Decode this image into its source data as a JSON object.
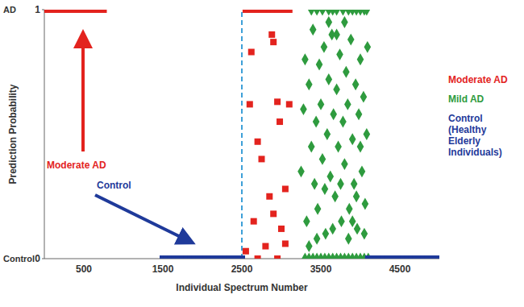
{
  "chart_data": {
    "type": "scatter",
    "x_label": "Individual Spectrum Number",
    "y_label": "Prediction Probability",
    "xlim": [
      0,
      5000
    ],
    "xticks": [
      500,
      1500,
      2500,
      3500,
      4500
    ],
    "ylim": [
      0,
      1
    ],
    "yticks": [
      0,
      1
    ],
    "grid": false,
    "legend": "right",
    "y_class_labels": [
      {
        "value": 1,
        "label": "AD"
      },
      {
        "value": 0,
        "label": "Control"
      }
    ],
    "annotations": [
      {
        "text": "Moderate AD",
        "color": "#e3231e"
      },
      {
        "text": "Control",
        "color": "#1f3a9a"
      }
    ],
    "reference_lines": [
      2500
    ],
    "series": [
      {
        "name": "Moderate AD",
        "color": "#e3231e",
        "marker": "square",
        "x": [
          0,
          50,
          100,
          150,
          200,
          250,
          300,
          350,
          400,
          450,
          500,
          550,
          600,
          650,
          700,
          750,
          2550,
          2600,
          2650,
          2700,
          2750,
          2800,
          2850,
          2900,
          2950,
          3000,
          3050,
          3100,
          2620,
          2600,
          2700,
          2880,
          2900,
          2950,
          2980,
          2750,
          2850,
          3000,
          3050,
          2800,
          2900,
          3100,
          2650,
          2550,
          2700,
          2950,
          3050
        ],
        "values": [
          1,
          1,
          1,
          1,
          1,
          1,
          1,
          1,
          1,
          1,
          1,
          1,
          1,
          1,
          1,
          1,
          1,
          1,
          1,
          1,
          1,
          1,
          1,
          1,
          1,
          1,
          1,
          1,
          0.83,
          0.62,
          0.47,
          0.9,
          0.87,
          0.63,
          0.55,
          0.4,
          0.25,
          0.12,
          0.06,
          0.05,
          0.18,
          0.62,
          0.15,
          0.03,
          0,
          0,
          0.28
        ]
      },
      {
        "name": "Mild AD",
        "color": "#2e9b3e",
        "marker": "diamond",
        "x": [
          3380,
          3450,
          3520,
          3600,
          3650,
          3700,
          3780,
          3850,
          3900,
          3950,
          4000,
          4050,
          4080,
          3300,
          3350,
          3400,
          3450,
          3500,
          3550,
          3600,
          3650,
          3700,
          3750,
          3800,
          3850,
          3900,
          3950,
          4000,
          4050,
          4100,
          3250,
          3280,
          3300,
          3320,
          3350,
          3380,
          3400,
          3420,
          3440,
          3460,
          3480,
          3500,
          3520,
          3540,
          3560,
          3580,
          3600,
          3620,
          3640,
          3660,
          3680,
          3700,
          3720,
          3740,
          3760,
          3780,
          3800,
          3820,
          3840,
          3860,
          3880,
          3900,
          3920,
          3940,
          3960,
          3980,
          4000,
          4020,
          4040,
          4060,
          4080,
          4090,
          3750,
          3850,
          3950,
          3650,
          3550,
          3450,
          3350,
          4050,
          3900,
          3700,
          3600,
          4000,
          3800
        ],
        "values": [
          1,
          1,
          1,
          1,
          1,
          1,
          1,
          1,
          1,
          1,
          1,
          1,
          1,
          0,
          0,
          0,
          0,
          0,
          0,
          0,
          0,
          0,
          0,
          0,
          0,
          0,
          0,
          0,
          0,
          0,
          0.35,
          0.6,
          0.8,
          0.15,
          0.7,
          0.45,
          0.92,
          0.3,
          0.55,
          0.2,
          0.78,
          0.62,
          0.4,
          0.85,
          0.1,
          0.5,
          0.72,
          0.33,
          0.9,
          0.58,
          0.25,
          0.68,
          0.45,
          0.82,
          0.15,
          0.55,
          0.38,
          0.75,
          0.62,
          0.2,
          0.88,
          0.48,
          0.3,
          0.7,
          0.12,
          0.58,
          0.8,
          0.35,
          0.65,
          0.22,
          0.5,
          0.85,
          0.3,
          0.08,
          0.25,
          0.12,
          0.28,
          0.08,
          0.05,
          0.1,
          0.15,
          0.9,
          0.95,
          0.45,
          0.95
        ]
      },
      {
        "name": "Control (Healthy Elderly Individuals)",
        "color": "#1f3a9a",
        "marker": "square",
        "x": [
          1500,
          1550,
          1600,
          1650,
          1700,
          1750,
          1800,
          1850,
          1900,
          1950,
          2000,
          2050,
          2100,
          2150,
          2200,
          2250,
          2300,
          2350,
          2400,
          2450,
          2500,
          4100,
          4150,
          4200,
          4250,
          4300,
          4350,
          4400,
          4450,
          4500,
          4550,
          4600,
          4650,
          4700,
          4750,
          4800,
          4850,
          4900,
          4950,
          5000
        ],
        "values": [
          0,
          0,
          0,
          0,
          0,
          0,
          0,
          0,
          0,
          0,
          0,
          0,
          0,
          0,
          0,
          0,
          0,
          0,
          0,
          0,
          0,
          0,
          0,
          0,
          0,
          0,
          0,
          0,
          0,
          0,
          0,
          0,
          0,
          0,
          0,
          0,
          0,
          0,
          0,
          0
        ]
      }
    ]
  }
}
